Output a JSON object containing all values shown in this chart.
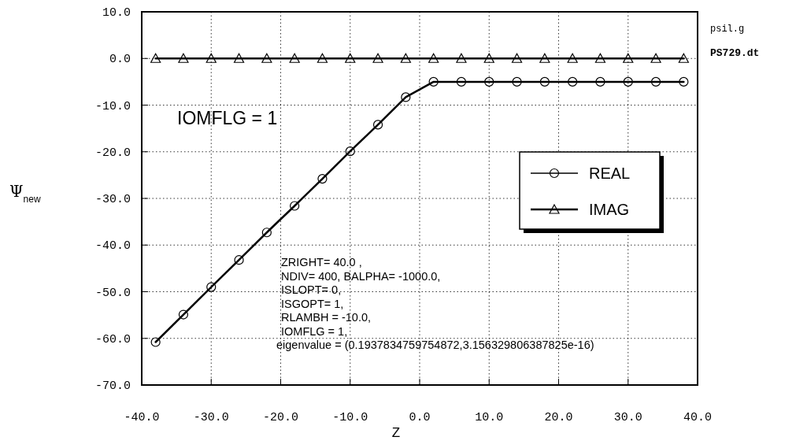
{
  "chart_data": {
    "type": "line",
    "xlabel": "Z",
    "ylabel": "Ψ$_{new}$",
    "x": [
      -38,
      -34,
      -30,
      -26,
      -22,
      -18,
      -14,
      -10,
      -6,
      -2,
      2,
      6,
      10,
      14,
      18,
      22,
      26,
      30,
      34,
      38
    ],
    "series": [
      {
        "name": "REAL",
        "color": "#000000",
        "marker": "circle",
        "values": [
          -60.8,
          -54.9,
          -49.0,
          -43.2,
          -37.3,
          -31.6,
          -25.8,
          -19.9,
          -14.2,
          -8.3,
          -5,
          -5,
          -5,
          -5,
          -5,
          -5,
          -5,
          -5,
          -5,
          -5
        ]
      },
      {
        "name": "IMAG",
        "color": "#000000",
        "marker": "triangle",
        "values": [
          0,
          0,
          0,
          0,
          0,
          0,
          0,
          0,
          0,
          0,
          0,
          0,
          0,
          0,
          0,
          0,
          0,
          0,
          0,
          0
        ]
      }
    ],
    "xlim": [
      -40,
      40
    ],
    "ylim": [
      -70,
      10
    ],
    "xticks": [
      {
        "value": -40,
        "label": "-40.0"
      },
      {
        "value": -30,
        "label": "-30.0"
      },
      {
        "value": -20,
        "label": "-20.0"
      },
      {
        "value": -10,
        "label": "-10.0"
      },
      {
        "value": 0,
        "label": "0.0"
      },
      {
        "value": 10,
        "label": "10.0"
      },
      {
        "value": 20,
        "label": "20.0"
      },
      {
        "value": 30,
        "label": "30.0"
      },
      {
        "value": 40,
        "label": "40.0"
      }
    ],
    "yticks": [
      {
        "value": 10,
        "label": "10.0"
      },
      {
        "value": 0,
        "label": "0.0"
      },
      {
        "value": -10,
        "label": "-10.0"
      },
      {
        "value": -20,
        "label": "-20.0"
      },
      {
        "value": -30,
        "label": "-30.0"
      },
      {
        "value": -40,
        "label": "-40.0"
      },
      {
        "value": -50,
        "label": "-50.0"
      },
      {
        "value": -60,
        "label": "-60.0"
      },
      {
        "value": -70,
        "label": "-70.0"
      }
    ],
    "grid": true,
    "legend": "right",
    "line_style": "solid",
    "annotations": [
      "psil.g",
      "PS729.dt",
      "IOMFLG = 1",
      "ZRIGHT= 40.0 ,",
      "NDIV= 400,  BALPHA= -1000.0,",
      "ISLOPT= 0,",
      "ISGOPT= 1,",
      "RLAMBH = -10.0,",
      "IOMFLG = 1,",
      "eigenvalue = (0.1937834759754872,3.156329806387825e-16)"
    ]
  }
}
